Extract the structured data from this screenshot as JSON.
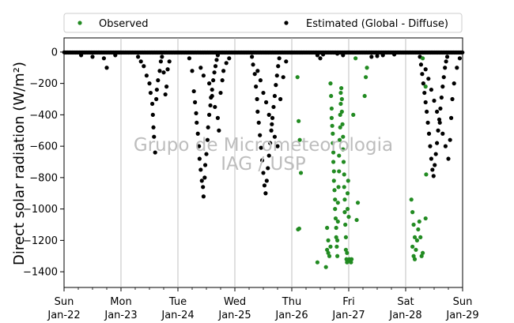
{
  "chart_data": {
    "type": "scatter",
    "ylabel": "Direct solar radiation (W/m²)",
    "ylim": [
      -1500,
      90
    ],
    "yticks": [
      0,
      -200,
      -400,
      -600,
      -800,
      -1000,
      -1200,
      -1400
    ],
    "xlim": [
      0,
      7
    ],
    "xticks": [
      {
        "day": "Sun",
        "date": "Jan-22",
        "x": 0
      },
      {
        "day": "Mon",
        "date": "Jan-23",
        "x": 1
      },
      {
        "day": "Tue",
        "date": "Jan-24",
        "x": 2
      },
      {
        "day": "Wed",
        "date": "Jan-25",
        "x": 3
      },
      {
        "day": "Thu",
        "date": "Jan-26",
        "x": 4
      },
      {
        "day": "Fri",
        "date": "Jan-27",
        "x": 5
      },
      {
        "day": "Sat",
        "date": "Jan-28",
        "x": 6
      },
      {
        "day": "Sun",
        "date": "Jan-29",
        "x": 7
      }
    ],
    "grid": "x-only",
    "legend": {
      "placement": "top"
    },
    "watermark": [
      "Grupo de Micrometeorologia",
      "IAG / USP"
    ],
    "series": [
      {
        "name": "Observed",
        "color": "#228b22",
        "points": [
          [
            4.1,
            -160
          ],
          [
            4.12,
            -440
          ],
          [
            4.14,
            -560
          ],
          [
            4.16,
            -770
          ],
          [
            4.11,
            -1130
          ],
          [
            4.13,
            -1125
          ],
          [
            4.45,
            -1340
          ],
          [
            4.6,
            -1370
          ],
          [
            4.62,
            -1120
          ],
          [
            4.64,
            -1280
          ],
          [
            4.62,
            -1260
          ],
          [
            4.64,
            -1200
          ],
          [
            4.66,
            -1300
          ],
          [
            4.68,
            -1240
          ],
          [
            4.68,
            -200
          ],
          [
            4.69,
            -280
          ],
          [
            4.7,
            -360
          ],
          [
            4.7,
            -420
          ],
          [
            4.71,
            -470
          ],
          [
            4.72,
            -520
          ],
          [
            4.72,
            -580
          ],
          [
            4.73,
            -640
          ],
          [
            4.73,
            -700
          ],
          [
            4.74,
            -760
          ],
          [
            4.74,
            -820
          ],
          [
            4.75,
            -880
          ],
          [
            4.76,
            -940
          ],
          [
            4.76,
            -1000
          ],
          [
            4.77,
            -1060
          ],
          [
            4.78,
            -1120
          ],
          [
            4.78,
            -1180
          ],
          [
            4.79,
            -1240
          ],
          [
            4.8,
            -1300
          ],
          [
            4.8,
            -1200
          ],
          [
            4.81,
            -1080
          ],
          [
            4.81,
            -960
          ],
          [
            4.82,
            -860
          ],
          [
            4.83,
            -760
          ],
          [
            4.83,
            -660
          ],
          [
            4.84,
            -560
          ],
          [
            4.85,
            -480
          ],
          [
            4.85,
            -400
          ],
          [
            4.86,
            -330
          ],
          [
            4.86,
            -260
          ],
          [
            4.87,
            -230
          ],
          [
            4.88,
            -300
          ],
          [
            4.88,
            -380
          ],
          [
            4.89,
            -460
          ],
          [
            4.9,
            -540
          ],
          [
            4.9,
            -620
          ],
          [
            4.91,
            -700
          ],
          [
            4.92,
            -780
          ],
          [
            4.92,
            -860
          ],
          [
            4.93,
            -940
          ],
          [
            4.93,
            -1020
          ],
          [
            4.94,
            -1100
          ],
          [
            4.95,
            -1180
          ],
          [
            4.95,
            -1260
          ],
          [
            4.96,
            -1320
          ],
          [
            4.97,
            -1340
          ],
          [
            4.97,
            -1280
          ],
          [
            4.98,
            -1000
          ],
          [
            4.98,
            -900
          ],
          [
            4.99,
            -820
          ],
          [
            5.0,
            -1050
          ],
          [
            5.01,
            -1320
          ],
          [
            5.02,
            -1330
          ],
          [
            5.04,
            -1340
          ],
          [
            5.05,
            -1320
          ],
          [
            5.08,
            -400
          ],
          [
            5.12,
            -40
          ],
          [
            5.14,
            -1070
          ],
          [
            5.16,
            -960
          ],
          [
            5.28,
            -280
          ],
          [
            5.3,
            -160
          ],
          [
            5.32,
            -100
          ],
          [
            6.1,
            -940
          ],
          [
            6.12,
            -1020
          ],
          [
            6.14,
            -1100
          ],
          [
            6.16,
            -1180
          ],
          [
            6.12,
            -1240
          ],
          [
            6.14,
            -1300
          ],
          [
            6.16,
            -1320
          ],
          [
            6.18,
            -1260
          ],
          [
            6.2,
            -1200
          ],
          [
            6.22,
            -1130
          ],
          [
            6.24,
            -1080
          ],
          [
            6.26,
            -1180
          ],
          [
            6.28,
            -1300
          ],
          [
            6.3,
            -1280
          ],
          [
            6.35,
            -1060
          ],
          [
            6.3,
            -40
          ],
          [
            6.35,
            -220
          ],
          [
            6.36,
            -780
          ]
        ]
      },
      {
        "name": "Estimated (Global - Diffuse)",
        "color": "#000000",
        "points": [
          [
            0.3,
            -20
          ],
          [
            0.5,
            -30
          ],
          [
            0.7,
            -40
          ],
          [
            0.75,
            -100
          ],
          [
            0.9,
            -20
          ],
          [
            1.3,
            -30
          ],
          [
            1.35,
            -60
          ],
          [
            1.4,
            -90
          ],
          [
            1.45,
            -150
          ],
          [
            1.5,
            -200
          ],
          [
            1.52,
            -260
          ],
          [
            1.55,
            -330
          ],
          [
            1.56,
            -400
          ],
          [
            1.57,
            -480
          ],
          [
            1.58,
            -540
          ],
          [
            1.6,
            -640
          ],
          [
            1.62,
            -300
          ],
          [
            1.63,
            -240
          ],
          [
            1.65,
            -180
          ],
          [
            1.68,
            -120
          ],
          [
            1.7,
            -60
          ],
          [
            1.72,
            -30
          ],
          [
            1.75,
            -130
          ],
          [
            1.78,
            -270
          ],
          [
            1.8,
            -220
          ],
          [
            1.82,
            -110
          ],
          [
            1.85,
            -60
          ],
          [
            2.2,
            -40
          ],
          [
            2.25,
            -120
          ],
          [
            2.28,
            -250
          ],
          [
            2.3,
            -320
          ],
          [
            2.32,
            -390
          ],
          [
            2.33,
            -450
          ],
          [
            2.35,
            -520
          ],
          [
            2.37,
            -600
          ],
          [
            2.38,
            -680
          ],
          [
            2.4,
            -750
          ],
          [
            2.42,
            -820
          ],
          [
            2.44,
            -860
          ],
          [
            2.45,
            -920
          ],
          [
            2.47,
            -800
          ],
          [
            2.48,
            -720
          ],
          [
            2.5,
            -650
          ],
          [
            2.52,
            -560
          ],
          [
            2.53,
            -480
          ],
          [
            2.55,
            -400
          ],
          [
            2.57,
            -340
          ],
          [
            2.58,
            -290
          ],
          [
            2.6,
            -240
          ],
          [
            2.62,
            -180
          ],
          [
            2.64,
            -130
          ],
          [
            2.66,
            -90
          ],
          [
            2.68,
            -50
          ],
          [
            2.7,
            -20
          ],
          [
            2.4,
            -100
          ],
          [
            2.45,
            -150
          ],
          [
            2.55,
            -200
          ],
          [
            2.6,
            -280
          ],
          [
            2.65,
            -350
          ],
          [
            2.7,
            -420
          ],
          [
            2.72,
            -500
          ],
          [
            2.75,
            -260
          ],
          [
            2.78,
            -180
          ],
          [
            2.8,
            -120
          ],
          [
            2.85,
            -70
          ],
          [
            2.9,
            -40
          ],
          [
            3.3,
            -30
          ],
          [
            3.32,
            -80
          ],
          [
            3.35,
            -140
          ],
          [
            3.37,
            -220
          ],
          [
            3.39,
            -300
          ],
          [
            3.4,
            -380
          ],
          [
            3.42,
            -450
          ],
          [
            3.44,
            -530
          ],
          [
            3.46,
            -610
          ],
          [
            3.48,
            -690
          ],
          [
            3.5,
            -770
          ],
          [
            3.52,
            -850
          ],
          [
            3.54,
            -900
          ],
          [
            3.56,
            -820
          ],
          [
            3.58,
            -740
          ],
          [
            3.6,
            -660
          ],
          [
            3.62,
            -580
          ],
          [
            3.64,
            -500
          ],
          [
            3.66,
            -420
          ],
          [
            3.68,
            -350
          ],
          [
            3.7,
            -280
          ],
          [
            3.72,
            -210
          ],
          [
            3.74,
            -150
          ],
          [
            3.76,
            -90
          ],
          [
            3.78,
            -40
          ],
          [
            3.4,
            -120
          ],
          [
            3.45,
            -180
          ],
          [
            3.5,
            -260
          ],
          [
            3.55,
            -320
          ],
          [
            3.6,
            -400
          ],
          [
            3.65,
            -460
          ],
          [
            3.7,
            -540
          ],
          [
            3.75,
            -600
          ],
          [
            3.8,
            -300
          ],
          [
            3.85,
            -160
          ],
          [
            3.9,
            -60
          ],
          [
            4.45,
            -20
          ],
          [
            4.5,
            -40
          ],
          [
            4.55,
            -15
          ],
          [
            4.8,
            -10
          ],
          [
            4.9,
            -20
          ],
          [
            5.4,
            -30
          ],
          [
            5.5,
            -25
          ],
          [
            5.6,
            -20
          ],
          [
            5.8,
            -15
          ],
          [
            6.25,
            -30
          ],
          [
            6.27,
            -80
          ],
          [
            6.29,
            -140
          ],
          [
            6.31,
            -200
          ],
          [
            6.33,
            -260
          ],
          [
            6.35,
            -320
          ],
          [
            6.37,
            -380
          ],
          [
            6.39,
            -450
          ],
          [
            6.41,
            -520
          ],
          [
            6.43,
            -600
          ],
          [
            6.45,
            -680
          ],
          [
            6.47,
            -750
          ],
          [
            6.49,
            -790
          ],
          [
            6.51,
            -720
          ],
          [
            6.53,
            -650
          ],
          [
            6.55,
            -580
          ],
          [
            6.57,
            -500
          ],
          [
            6.59,
            -430
          ],
          [
            6.61,
            -360
          ],
          [
            6.63,
            -290
          ],
          [
            6.65,
            -220
          ],
          [
            6.67,
            -160
          ],
          [
            6.69,
            -100
          ],
          [
            6.71,
            -60
          ],
          [
            6.73,
            -30
          ],
          [
            6.35,
            -110
          ],
          [
            6.4,
            -170
          ],
          [
            6.45,
            -240
          ],
          [
            6.5,
            -310
          ],
          [
            6.55,
            -380
          ],
          [
            6.6,
            -450
          ],
          [
            6.65,
            -520
          ],
          [
            6.7,
            -600
          ],
          [
            6.75,
            -680
          ],
          [
            6.78,
            -560
          ],
          [
            6.8,
            -420
          ],
          [
            6.82,
            -300
          ],
          [
            6.85,
            -200
          ],
          [
            6.9,
            -100
          ],
          [
            6.95,
            -40
          ]
        ]
      }
    ]
  }
}
